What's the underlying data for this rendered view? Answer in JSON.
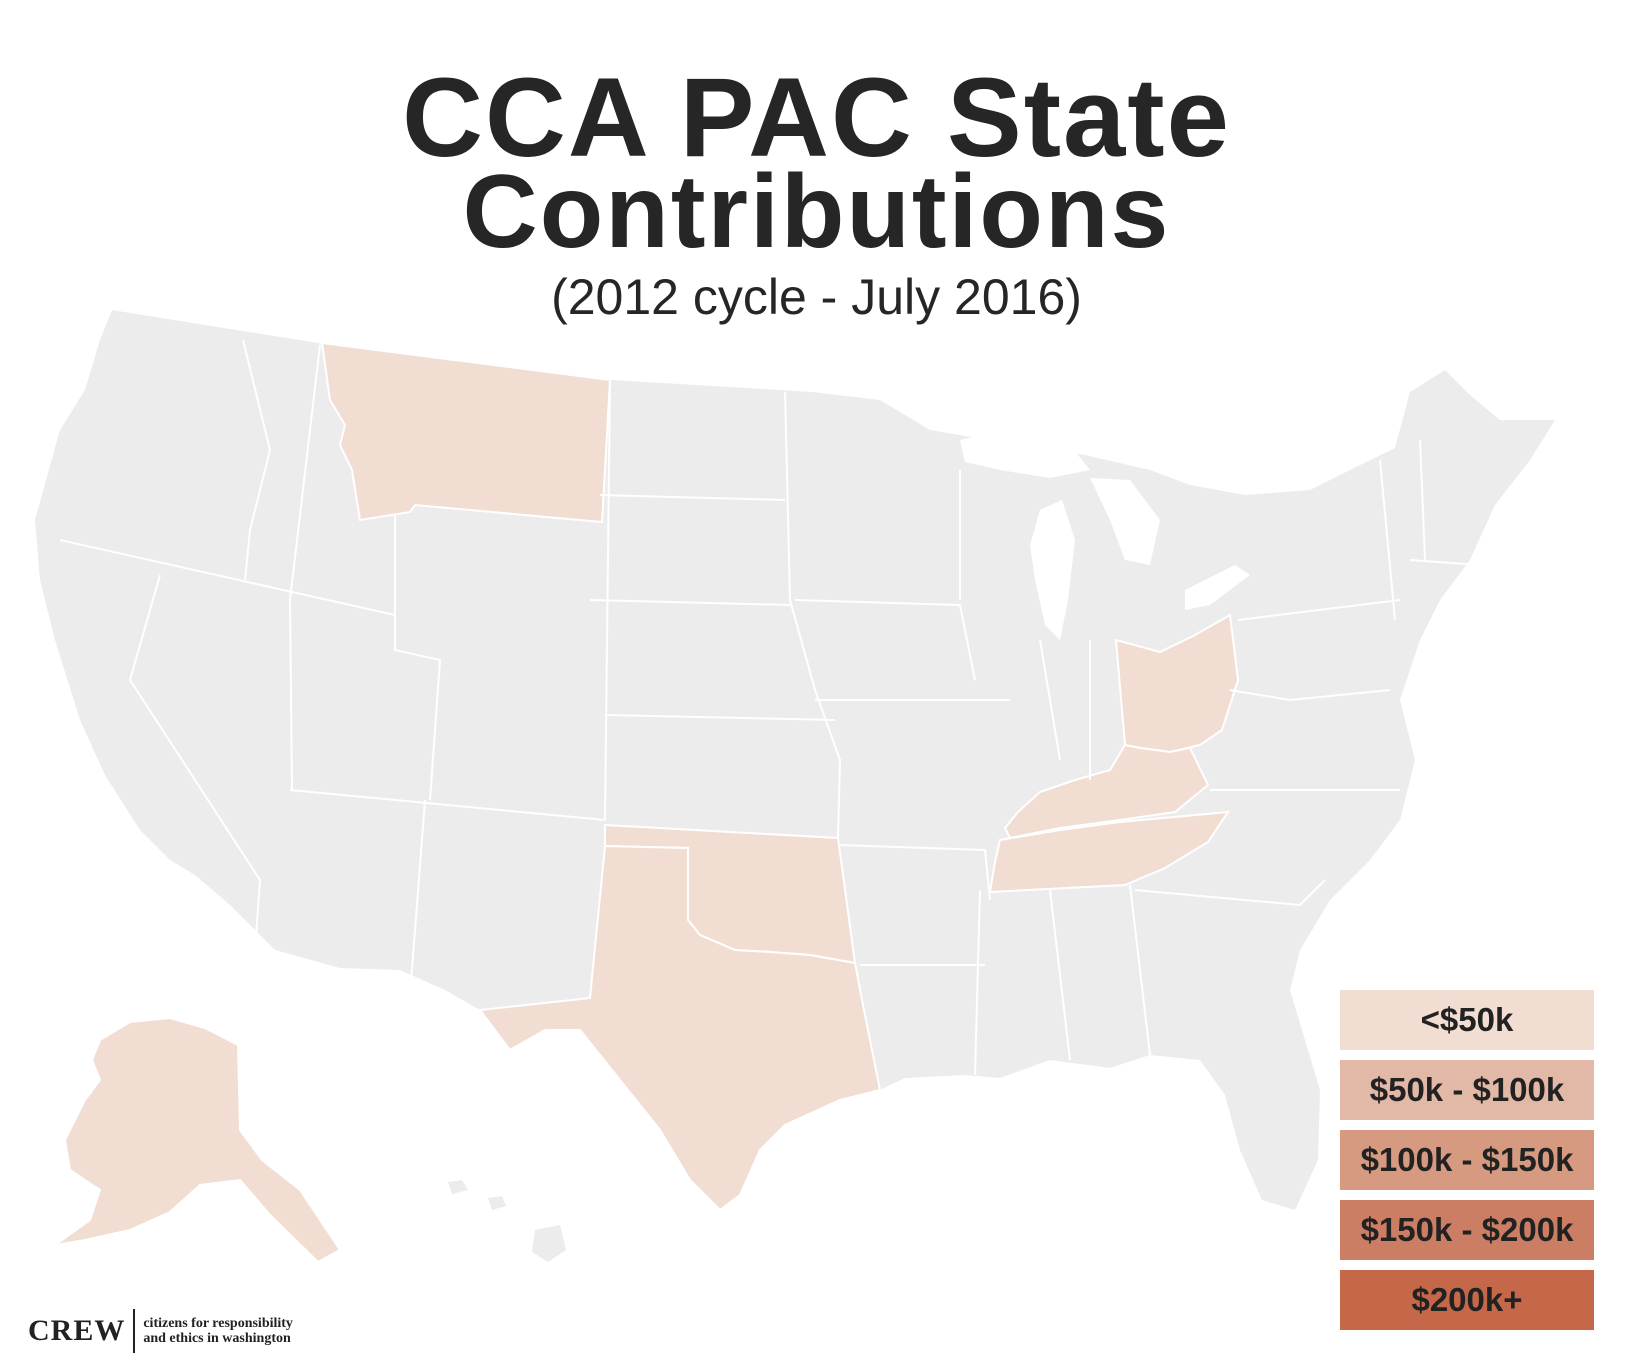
{
  "title": {
    "line1": "CCA PAC State",
    "line2": "Contributions",
    "subtitle": "(2012 cycle - July 2016)"
  },
  "legend": {
    "items": [
      {
        "label": "<$50k",
        "color": "#f2ddd2"
      },
      {
        "label": "$50k - $100k",
        "color": "#e2b8a6"
      },
      {
        "label": "$100k - $150k",
        "color": "#d69a81"
      },
      {
        "label": "$150k - $200k",
        "color": "#cb7e63"
      },
      {
        "label": "$200k+",
        "color": "#c56749"
      }
    ]
  },
  "map": {
    "base_color": "#ececec",
    "border_color": "#ffffff",
    "highlight_color": "#f2ddd2",
    "highlighted_states": [
      "Montana",
      "Ohio",
      "Kentucky",
      "Tennessee",
      "Oklahoma",
      "Texas",
      "Alaska"
    ]
  },
  "logo": {
    "wordmark": "CREW",
    "tagline_line1": "citizens for responsibility",
    "tagline_line2": "and ethics in washington"
  }
}
